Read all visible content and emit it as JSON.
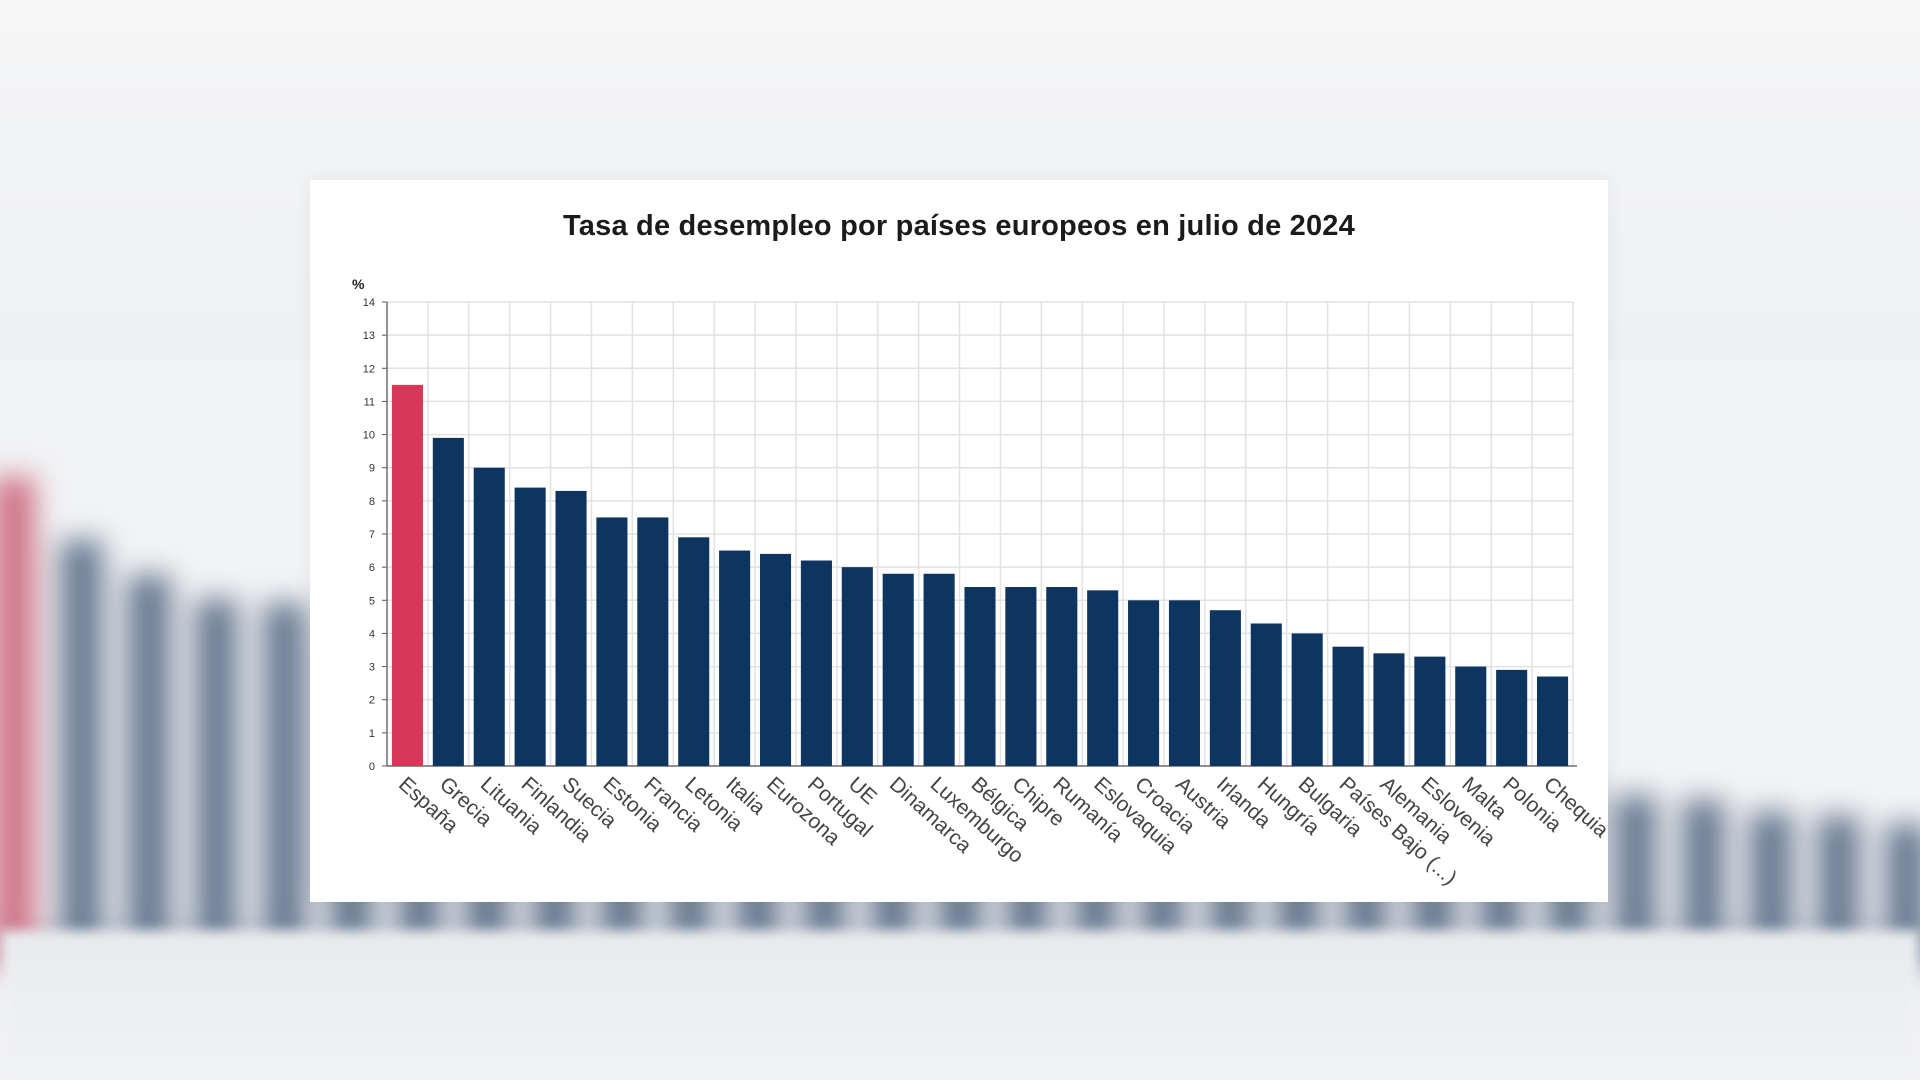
{
  "colors": {
    "bar": "#0d3560",
    "highlight": "#d7385a",
    "grid": "#e2e2e2",
    "axis": "#555555"
  },
  "chart_data": {
    "type": "bar",
    "title": "Tasa de desempleo por países europeos en julio de 2024",
    "ylabel": "%",
    "xlabel": "",
    "ylim": [
      0,
      14
    ],
    "yticks": [
      0,
      1,
      2,
      3,
      4,
      5,
      6,
      7,
      8,
      9,
      10,
      11,
      12,
      13,
      14
    ],
    "grid": true,
    "highlight_category": "España",
    "categories": [
      "España",
      "Grecia",
      "Lituania",
      "Finlandia",
      "Suecia",
      "Estonia",
      "Francia",
      "Letonia",
      "Italia",
      "Eurozona",
      "Portugal",
      "UE",
      "Dinamarca",
      "Luxemburgo",
      "Bélgica",
      "Chipre",
      "Rumanía",
      "Eslovaquia",
      "Croacia",
      "Austria",
      "Irlanda",
      "Hungría",
      "Bulgaria",
      "Países Bajo (...)",
      "Alemania",
      "Eslovenia",
      "Malta",
      "Polonia",
      "Chequia"
    ],
    "values": [
      11.5,
      9.9,
      9.0,
      8.4,
      8.3,
      7.5,
      7.5,
      6.9,
      6.5,
      6.4,
      6.2,
      6.0,
      5.8,
      5.8,
      5.4,
      5.4,
      5.4,
      5.3,
      5.0,
      5.0,
      4.7,
      4.3,
      4.0,
      3.6,
      3.4,
      3.3,
      3.0,
      2.9,
      2.7
    ]
  }
}
